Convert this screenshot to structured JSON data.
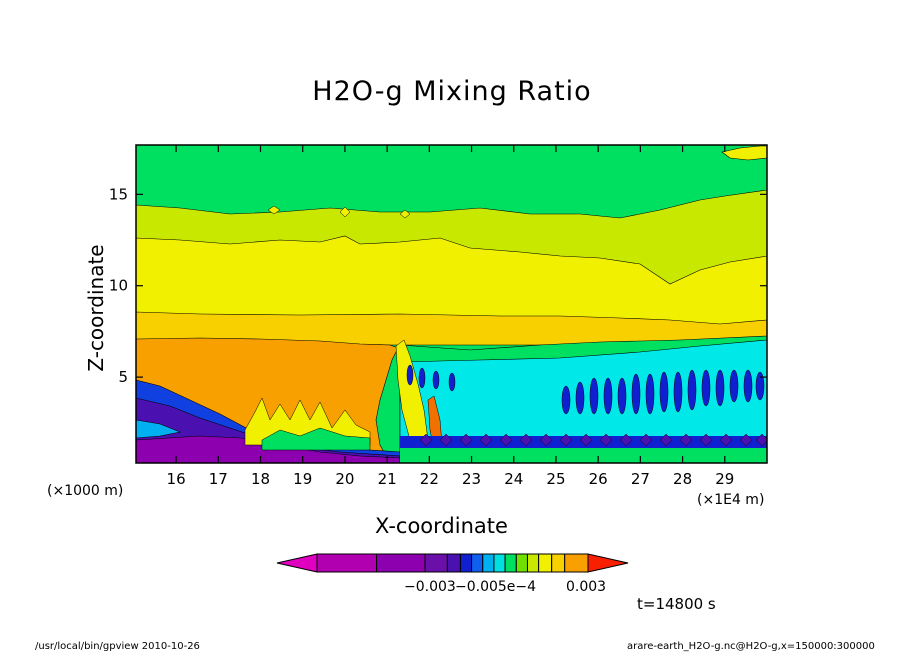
{
  "chart_data": {
    "type": "heatmap",
    "title": "H2O-g Mixing Ratio",
    "xlabel": "X-coordinate",
    "ylabel": "Z-coordinate",
    "x_unit_left": "(×1000 m)",
    "x_unit_right": "(×1E4 m)",
    "xlim": [
      15.05,
      30.0
    ],
    "ylim": [
      0.3,
      17.7
    ],
    "x_ticks": [
      "16",
      "17",
      "18",
      "19",
      "20",
      "21",
      "22",
      "23",
      "24",
      "25",
      "26",
      "27",
      "28",
      "29"
    ],
    "y_ticks": [
      "5",
      "10",
      "15"
    ],
    "colorbar": {
      "colors": [
        "#e000c0",
        "#b000b0",
        "#8c00b0",
        "#6a10a8",
        "#4a10b0",
        "#1020d0",
        "#1060f0",
        "#00b0f0",
        "#00e0e0",
        "#00e060",
        "#70e000",
        "#c8e800",
        "#f0f000",
        "#f8d000",
        "#f8a000",
        "#f07000",
        "#f82000"
      ],
      "labels": [
        "−0.003",
        "−0.005e−4",
        "0.003"
      ]
    },
    "time_label": "t=14800  s",
    "footer_left": "/usr/local/bin/gpview   2010-10-26",
    "footer_right": "arare-earth_H2O-g.nc@H2O-g,x=150000:300000"
  }
}
